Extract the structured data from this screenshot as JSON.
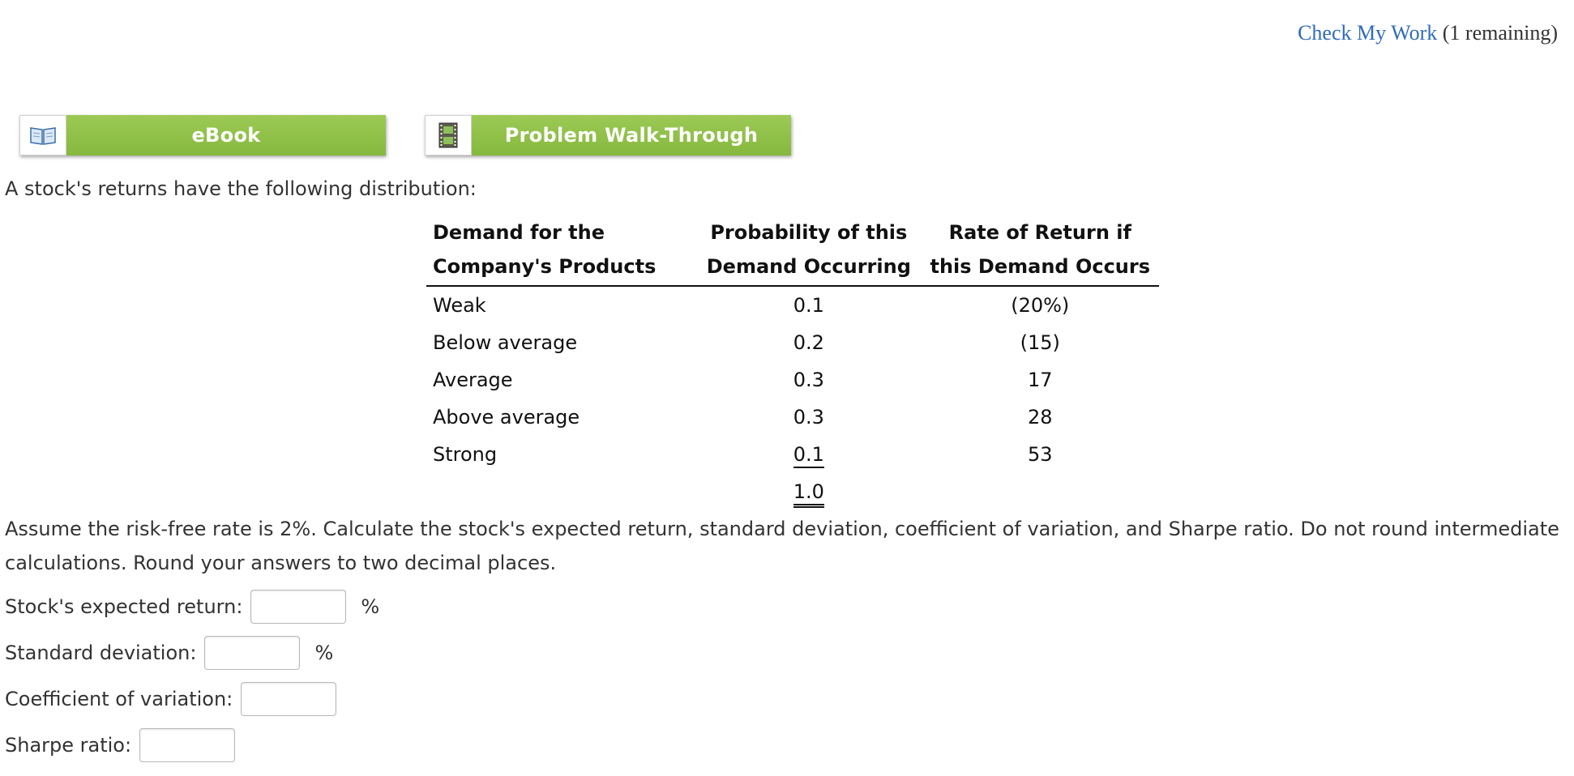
{
  "header": {
    "check_link": "Check My Work",
    "remaining": "(1 remaining)"
  },
  "resources": {
    "ebook_label": "eBook",
    "ebook_icon": "book-icon",
    "walkthrough_label": "Problem Walk-Through",
    "walkthrough_icon": "film-icon",
    "accent_color": "#8dc149"
  },
  "question": {
    "intro": "A stock's returns have the following distribution:",
    "instructions": "Assume the risk-free rate is 2%. Calculate the stock's expected return, standard deviation, coefficient of variation, and Sharpe ratio. Do not round intermediate calculations. Round your answers to two decimal places."
  },
  "table": {
    "headers": {
      "col1_line1": "Demand for the",
      "col1_line2": "Company's Products",
      "col2_line1": "Probability of this",
      "col2_line2": "Demand Occurring",
      "col3_line1": "Rate of Return if",
      "col3_line2": "this Demand Occurs"
    },
    "rows": [
      {
        "demand": "Weak",
        "probability": "0.1",
        "return": "(20%)"
      },
      {
        "demand": "Below average",
        "probability": "0.2",
        "return": "(15)"
      },
      {
        "demand": "Average",
        "probability": "0.3",
        "return": "17"
      },
      {
        "demand": "Above average",
        "probability": "0.3",
        "return": "28"
      },
      {
        "demand": "Strong",
        "probability": "0.1",
        "return": "53"
      }
    ],
    "total_probability": "1.0"
  },
  "answers": {
    "expected_return_label": "Stock's expected return:",
    "expected_return_value": "",
    "expected_return_unit": "%",
    "std_dev_label": "Standard deviation:",
    "std_dev_value": "",
    "std_dev_unit": "%",
    "cv_label": "Coefficient of variation:",
    "cv_value": "",
    "sharpe_label": "Sharpe ratio:",
    "sharpe_value": ""
  }
}
